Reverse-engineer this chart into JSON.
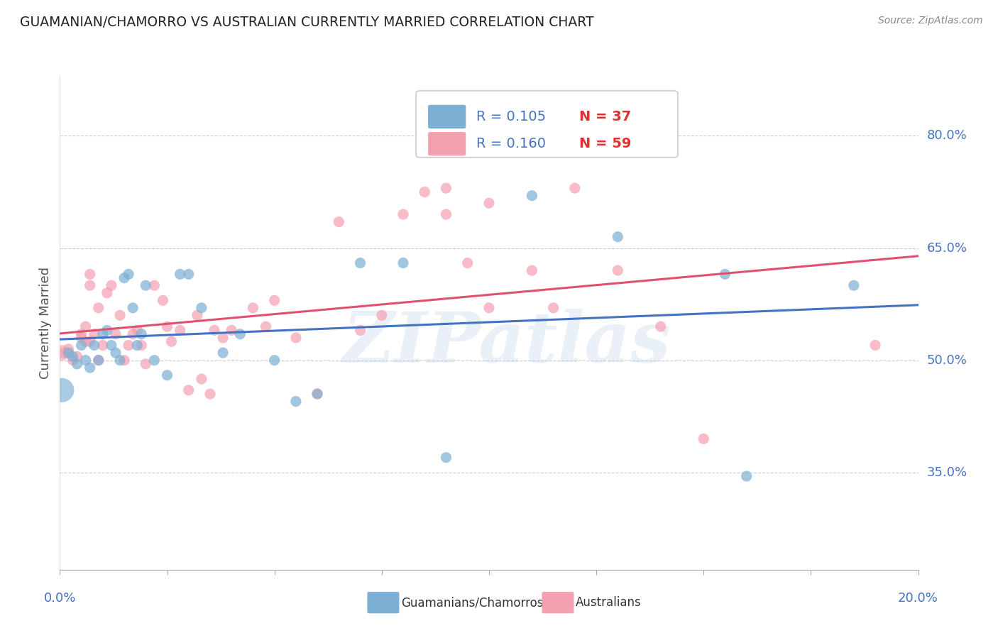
{
  "title": "GUAMANIAN/CHAMORRO VS AUSTRALIAN CURRENTLY MARRIED CORRELATION CHART",
  "source": "Source: ZipAtlas.com",
  "ylabel": "Currently Married",
  "watermark": "ZIPatlas",
  "blue_R": "0.105",
  "blue_N": "37",
  "pink_R": "0.160",
  "pink_N": "59",
  "blue_label": "Guamanians/Chamorros",
  "pink_label": "Australians",
  "yticks": [
    0.35,
    0.5,
    0.65,
    0.8
  ],
  "ytick_labels": [
    "35.0%",
    "50.0%",
    "65.0%",
    "80.0%"
  ],
  "xlim": [
    0.0,
    0.2
  ],
  "ylim": [
    0.22,
    0.88
  ],
  "blue_color": "#7BAFD4",
  "pink_color": "#F4A0B0",
  "blue_line_color": "#4472C4",
  "pink_line_color": "#E05070",
  "title_color": "#222222",
  "axis_label_color": "#4472C4",
  "legend_R_color": "#4472C4",
  "legend_N_color": "#E03030",
  "blue_scatter_x": [
    0.002,
    0.003,
    0.004,
    0.005,
    0.006,
    0.007,
    0.008,
    0.009,
    0.01,
    0.011,
    0.012,
    0.013,
    0.014,
    0.015,
    0.016,
    0.017,
    0.018,
    0.019,
    0.02,
    0.022,
    0.025,
    0.028,
    0.03,
    0.033,
    0.038,
    0.042,
    0.05,
    0.055,
    0.06,
    0.07,
    0.08,
    0.09,
    0.11,
    0.13,
    0.155,
    0.16,
    0.185
  ],
  "blue_scatter_y": [
    0.51,
    0.505,
    0.495,
    0.52,
    0.5,
    0.49,
    0.52,
    0.5,
    0.535,
    0.54,
    0.52,
    0.51,
    0.5,
    0.61,
    0.615,
    0.57,
    0.52,
    0.535,
    0.6,
    0.5,
    0.48,
    0.615,
    0.615,
    0.57,
    0.51,
    0.535,
    0.5,
    0.445,
    0.455,
    0.63,
    0.63,
    0.37,
    0.72,
    0.665,
    0.615,
    0.345,
    0.6
  ],
  "pink_scatter_x": [
    0.001,
    0.002,
    0.003,
    0.004,
    0.005,
    0.005,
    0.006,
    0.006,
    0.007,
    0.007,
    0.007,
    0.008,
    0.009,
    0.009,
    0.01,
    0.011,
    0.012,
    0.013,
    0.014,
    0.015,
    0.016,
    0.017,
    0.018,
    0.019,
    0.02,
    0.022,
    0.024,
    0.025,
    0.026,
    0.028,
    0.03,
    0.032,
    0.033,
    0.035,
    0.036,
    0.038,
    0.04,
    0.045,
    0.048,
    0.05,
    0.055,
    0.06,
    0.065,
    0.07,
    0.075,
    0.08,
    0.085,
    0.09,
    0.09,
    0.095,
    0.1,
    0.1,
    0.11,
    0.115,
    0.12,
    0.13,
    0.14,
    0.15,
    0.19
  ],
  "pink_scatter_y": [
    0.51,
    0.515,
    0.5,
    0.505,
    0.53,
    0.535,
    0.525,
    0.545,
    0.525,
    0.615,
    0.6,
    0.535,
    0.57,
    0.5,
    0.52,
    0.59,
    0.6,
    0.535,
    0.56,
    0.5,
    0.52,
    0.535,
    0.54,
    0.52,
    0.495,
    0.6,
    0.58,
    0.545,
    0.525,
    0.54,
    0.46,
    0.56,
    0.475,
    0.455,
    0.54,
    0.53,
    0.54,
    0.57,
    0.545,
    0.58,
    0.53,
    0.455,
    0.685,
    0.54,
    0.56,
    0.695,
    0.725,
    0.73,
    0.695,
    0.63,
    0.71,
    0.57,
    0.62,
    0.57,
    0.73,
    0.62,
    0.545,
    0.395,
    0.52
  ],
  "blue_big_dot_x": [
    0.0005
  ],
  "blue_big_dot_y": [
    0.46
  ],
  "blue_big_dot_size": 600,
  "pink_big_dot_x": [
    0.0005
  ],
  "pink_big_dot_y": [
    0.51
  ],
  "pink_big_dot_size": 250,
  "scatter_size": 120
}
